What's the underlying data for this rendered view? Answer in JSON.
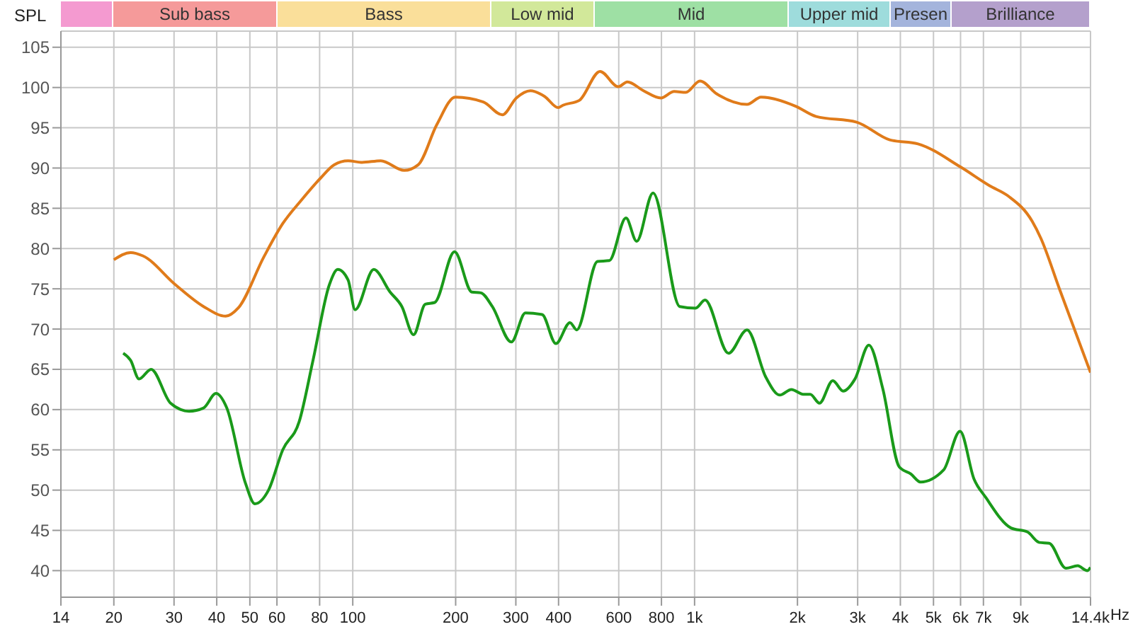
{
  "chart_data": [
    {
      "type": "other",
      "annotations": [
        "Sub bass",
        "Bass",
        "Low mid",
        "Mid",
        "Upper mid",
        "Presen",
        "Brilliance"
      ]
    },
    {
      "type": "line",
      "ylabel": "SPL",
      "xlabel": "Hz",
      "log": "x",
      "grid": true,
      "legend": false,
      "marker": "none",
      "line_style": "solid",
      "xlim": [
        14,
        14400
      ],
      "ylim": [
        36.7,
        107
      ],
      "xticks": [
        14,
        20,
        30,
        40,
        50,
        60,
        80,
        100,
        200,
        300,
        400,
        600,
        800,
        {
          "value": 1000,
          "label": "1k"
        },
        {
          "value": 2000,
          "label": "2k"
        },
        {
          "value": 3000,
          "label": "3k"
        },
        {
          "value": 4000,
          "label": "4k"
        },
        {
          "value": 5000,
          "label": "5k"
        },
        {
          "value": 6000,
          "label": "6k"
        },
        {
          "value": 7000,
          "label": "7k"
        },
        {
          "value": 9000,
          "label": "9k"
        },
        {
          "value": 14400,
          "label": "14.4k"
        }
      ],
      "yticks": [
        40,
        45,
        50,
        55,
        60,
        65,
        70,
        75,
        80,
        85,
        90,
        95,
        100,
        105
      ],
      "series": [
        {
          "color": "#e07b1a",
          "x": [
            20,
            22.4,
            24.3,
            30.3,
            36.6,
            42.5,
            46.2,
            55,
            62.4,
            70.7,
            80.3,
            88.2,
            96.9,
            106.5,
            120.8,
            141.4,
            155.4,
            176.2,
            199.6,
            241,
            274,
            301,
            331,
            364,
            399,
            412,
            460,
            529,
            598,
            636,
            709,
            797,
            872,
            943,
            1037,
            1162,
            1424,
            1565,
            1969,
            2268,
            2978,
            3723,
            4505,
            6014,
            7298,
            8283,
            9716,
            10300,
            11700,
            14400
          ],
          "values": [
            78.6,
            79.5,
            79.1,
            75.5,
            72.8,
            71.6,
            72.6,
            79.0,
            83.1,
            86.0,
            88.7,
            90.4,
            90.9,
            90.7,
            90.9,
            89.7,
            90.4,
            95.4,
            98.8,
            98.2,
            96.6,
            98.7,
            99.6,
            98.9,
            97.5,
            97.8,
            98.4,
            102.0,
            100.1,
            100.7,
            99.6,
            98.7,
            99.5,
            99.4,
            100.8,
            99.2,
            97.9,
            98.8,
            97.7,
            96.4,
            95.7,
            93.5,
            93.0,
            90.1,
            87.8,
            86.5,
            83.4,
            81.3,
            74.9,
            64.6
          ]
        },
        {
          "color": "#1a9a1a",
          "x": [
            21.3,
            22.4,
            23.7,
            25.7,
            29.3,
            33.2,
            36.6,
            39.8,
            42.8,
            48.5,
            51.7,
            56.7,
            62.4,
            69.7,
            76.5,
            85.4,
            90.4,
            96.9,
            101.6,
            115.2,
            128.6,
            139.2,
            150.6,
            163,
            173.7,
            198.5,
            223,
            237,
            256,
            291,
            320,
            358,
            393,
            432,
            452,
            520,
            563,
            630,
            677,
            756,
            905,
            1007,
            1073,
            1257,
            1424,
            1617,
            1775,
            1920,
            2078,
            2179,
            2320,
            2537,
            2722,
            2946,
            3236,
            3553,
            3969,
            4295,
            4581,
            5353,
            5979,
            6566,
            7108,
            8424,
            9418,
            10200,
            10900,
            12200,
            13200,
            14100,
            14400
          ],
          "values": [
            67.0,
            66.1,
            63.8,
            65.0,
            60.8,
            59.8,
            60.2,
            62.0,
            60.2,
            50.9,
            48.3,
            50.0,
            55.0,
            58.5,
            66.1,
            75.5,
            77.4,
            76.1,
            72.4,
            77.4,
            74.6,
            72.8,
            69.3,
            73.1,
            73.3,
            79.6,
            74.6,
            74.5,
            72.8,
            68.4,
            72.0,
            71.8,
            68.2,
            70.8,
            69.9,
            78.4,
            78.5,
            83.8,
            80.9,
            86.9,
            72.8,
            72.6,
            73.6,
            67.0,
            69.9,
            64.0,
            61.8,
            62.5,
            61.9,
            61.9,
            60.8,
            63.6,
            62.3,
            63.8,
            68.0,
            62.6,
            52.9,
            52.0,
            51.0,
            52.5,
            57.3,
            51.4,
            49.1,
            45.3,
            44.8,
            43.5,
            43.4,
            40.3,
            40.6,
            40.0,
            40.4
          ]
        }
      ]
    }
  ]
}
